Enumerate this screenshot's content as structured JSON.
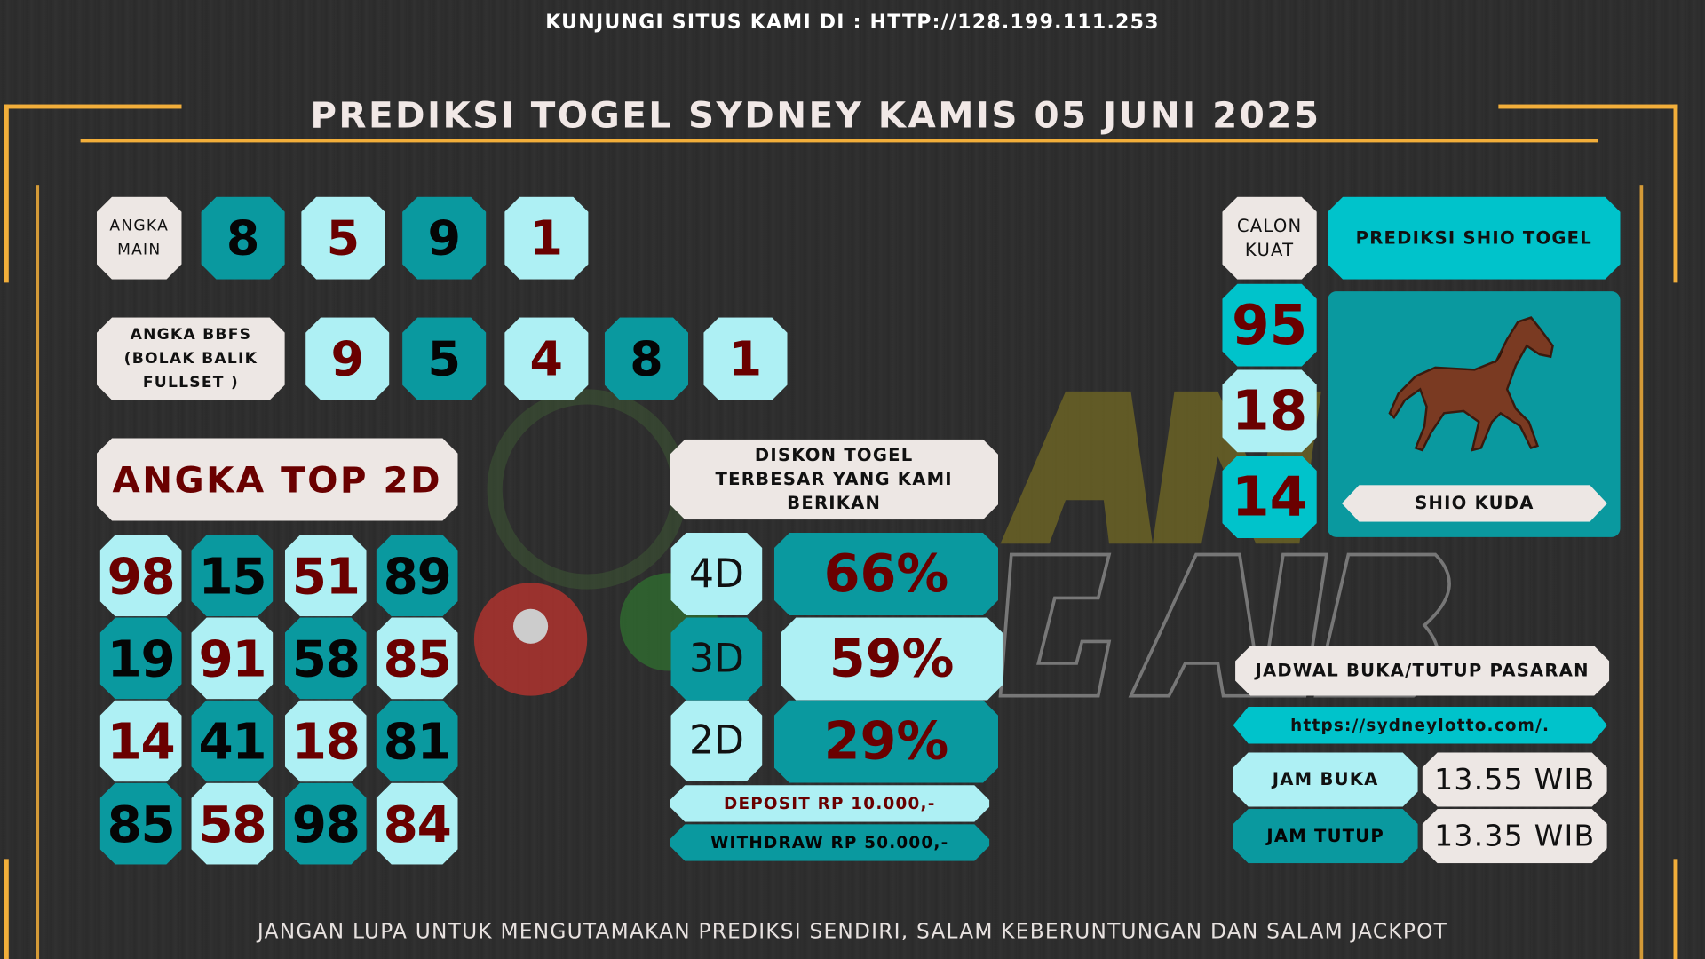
{
  "header": {
    "visit": "KUNJUNGI SITUS KAMI DI : HTTP://128.199.111.253",
    "title": "PREDIKSI TOGEL SYDNEY KAMIS 05 JUNI 2025"
  },
  "angka_main": {
    "label": "ANGKA MAIN",
    "values": [
      "8",
      "5",
      "9",
      "1"
    ]
  },
  "bbfs": {
    "label": "ANGKA BBFS (BOLAK BALIK FULLSET )",
    "values": [
      "9",
      "5",
      "4",
      "8",
      "1"
    ]
  },
  "top2d": {
    "label": "ANGKA TOP 2D",
    "rows": [
      [
        "98",
        "15",
        "51",
        "89"
      ],
      [
        "19",
        "91",
        "58",
        "85"
      ],
      [
        "14",
        "41",
        "18",
        "81"
      ],
      [
        "85",
        "58",
        "98",
        "84"
      ]
    ]
  },
  "diskon": {
    "label": "DISKON TOGEL TERBESAR YANG KAMI BERIKAN",
    "items": [
      {
        "type": "4D",
        "value": "66%"
      },
      {
        "type": "3D",
        "value": "59%"
      },
      {
        "type": "2D",
        "value": "29%"
      }
    ],
    "deposit": "DEPOSIT RP 10.000,-",
    "withdraw": "WITHDRAW RP 50.000,-"
  },
  "calon_kuat": {
    "label": "CALON KUAT",
    "values": [
      "95",
      "18",
      "14"
    ]
  },
  "shio": {
    "header": "PREDIKSI SHIO TOGEL",
    "name": "SHIO KUDA",
    "icon": "horse-icon"
  },
  "jadwal": {
    "label": "JADWAL BUKA/TUTUP PASARAN",
    "url": "https://sydneylotto.com/.",
    "buka_label": "JAM BUKA",
    "buka": "13.55 WIB",
    "tutup_label": "JAM TUTUP",
    "tutup": "13.35 WIB"
  },
  "footer": "JANGAN LUPA UNTUK MENGUTAMAKAN PREDIKSI SENDIRI, SALAM KEBERUNTUNGAN DAN SALAM JACKPOT",
  "colors": {
    "light": "#aef0f4",
    "teal": "#0a999f",
    "cyan": "#00c3cb",
    "cream": "#ede7e4",
    "maroon": "#6a0000",
    "gold": "#f2ae3a"
  }
}
